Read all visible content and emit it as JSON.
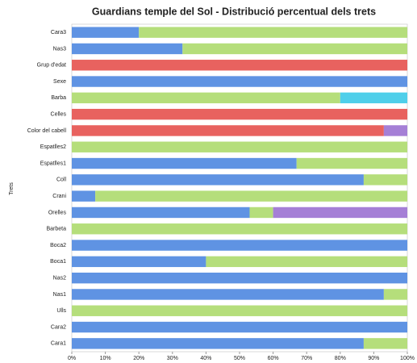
{
  "chart_data": {
    "type": "stacked-barh",
    "title": "Guardians temple del Sol - Distribució percentual dels trets",
    "y_label": "Trets",
    "categories": [
      "Cara3",
      "Nas3",
      "Grup d'edat",
      "Sexe",
      "Barba",
      "Celles",
      "Color del cabell",
      "Espatlles2",
      "Espatlles1",
      "Coll",
      "Crani",
      "Orelles",
      "Barbeta",
      "Boca2",
      "Boca1",
      "Nas2",
      "Nas1",
      "Ulls",
      "Cara2",
      "Cara1"
    ],
    "series": [
      {
        "color": "#5f93e3",
        "values": [
          20,
          33,
          0,
          100,
          0,
          0,
          0,
          0,
          67,
          87,
          7,
          53,
          0,
          100,
          40,
          100,
          93,
          0,
          100,
          87
        ]
      },
      {
        "color": "#b5de7b",
        "values": [
          80,
          67,
          0,
          0,
          80,
          0,
          0,
          100,
          33,
          13,
          93,
          7,
          100,
          0,
          60,
          0,
          7,
          100,
          0,
          13
        ]
      },
      {
        "color": "#e8625f",
        "values": [
          0,
          0,
          100,
          0,
          0,
          100,
          93,
          0,
          0,
          0,
          0,
          0,
          0,
          0,
          0,
          0,
          0,
          0,
          0,
          0
        ]
      },
      {
        "color": "#4fcfea",
        "values": [
          0,
          0,
          0,
          0,
          20,
          0,
          0,
          0,
          0,
          0,
          0,
          0,
          0,
          0,
          0,
          0,
          0,
          0,
          0,
          0
        ]
      },
      {
        "color": "#a57fd6",
        "values": [
          0,
          0,
          0,
          0,
          0,
          0,
          7,
          0,
          0,
          0,
          0,
          40,
          0,
          0,
          0,
          0,
          0,
          0,
          0,
          0
        ]
      }
    ],
    "xlim": [
      0,
      100
    ],
    "xticks": [
      {
        "value": 0,
        "label": "0%"
      },
      {
        "value": 10,
        "label": "10%"
      },
      {
        "value": 20,
        "label": "20%"
      },
      {
        "value": 30,
        "label": "30%"
      },
      {
        "value": 40,
        "label": "40%"
      },
      {
        "value": 50,
        "label": "50%"
      },
      {
        "value": 60,
        "label": "60%"
      },
      {
        "value": 70,
        "label": "70%"
      },
      {
        "value": 80,
        "label": "80%"
      },
      {
        "value": 90,
        "label": "90%"
      },
      {
        "value": 100,
        "label": "100%"
      }
    ],
    "grid": false
  }
}
